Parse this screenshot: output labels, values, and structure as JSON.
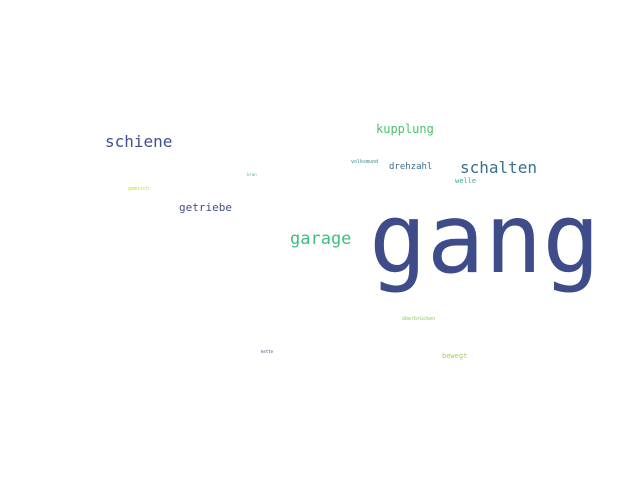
{
  "cloud": {
    "words": [
      {
        "text": "gang",
        "color": "#3f4c8a"
      },
      {
        "text": "schalten",
        "color": "#3a7090"
      },
      {
        "text": "garage",
        "color": "#3fbf7f"
      },
      {
        "text": "schiene",
        "color": "#3f5290"
      },
      {
        "text": "kupplung",
        "color": "#4ec06a"
      },
      {
        "text": "getriebe",
        "color": "#404f8a"
      },
      {
        "text": "drehzahl",
        "color": "#3a6a8e"
      },
      {
        "text": "welle",
        "color": "#3ab08a"
      },
      {
        "text": "volksmund",
        "color": "#3b8a8d"
      },
      {
        "text": "bewegt",
        "color": "#9ad94a"
      },
      {
        "text": "überbrücken",
        "color": "#7ccf55"
      },
      {
        "text": "gemisch",
        "color": "#c2dc38"
      },
      {
        "text": "kran",
        "color": "#44bf8a"
      },
      {
        "text": "kette",
        "color": "#3b4f86"
      }
    ]
  }
}
